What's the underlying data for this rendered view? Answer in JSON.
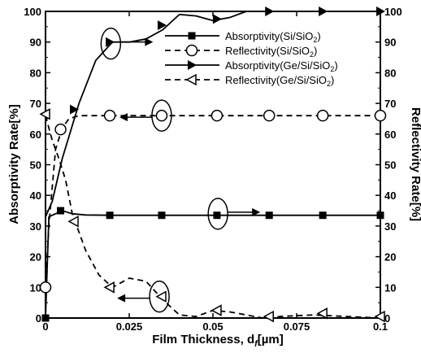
{
  "chart_data": {
    "type": "line",
    "xlabel": "Film Thickness, d",
    "xlabel_sub": "f",
    "xlabel_unit": "[µm]",
    "ylabel_left": "Absorptivity Rate[%]",
    "ylabel_right": "Reflectivity Rate[%]",
    "xlim": [
      0,
      0.1
    ],
    "ylim": [
      0,
      100
    ],
    "x_ticks": [
      0,
      0.025,
      0.05,
      0.075,
      0.1
    ],
    "x_tick_labels": [
      "0",
      "0.025",
      "0.05",
      "0.075",
      "0.1"
    ],
    "y_ticks": [
      0,
      10,
      20,
      30,
      40,
      50,
      60,
      70,
      80,
      90,
      100
    ],
    "y_tick_labels": [
      "0",
      "10",
      "20",
      "30",
      "40",
      "50",
      "60",
      "70",
      "80",
      "90",
      "100"
    ],
    "grid": false,
    "legend_position": "top-right",
    "series": [
      {
        "name": "Absorptivity(Si/SiO2)",
        "label_main": "Absorptivity(Si/SiO",
        "label_sub": "2",
        "label_end": ")",
        "axis": "left",
        "line_style": "solid",
        "marker": "filled-square",
        "x": [
          0,
          0.001,
          0.003,
          0.005,
          0.008,
          0.012,
          0.02,
          0.03,
          0.04,
          0.05,
          0.06,
          0.07,
          0.08,
          0.09,
          0.1
        ],
        "y": [
          0,
          33,
          34,
          35,
          34,
          33.6,
          33.5,
          33.5,
          33.5,
          33.5,
          33.5,
          33.5,
          33.5,
          33.5,
          33.5
        ],
        "marker_x": [
          0,
          0.0045,
          0.0192,
          0.0347,
          0.0512,
          0.0668,
          0.0828,
          0.1
        ],
        "marker_y": [
          0,
          35,
          33.5,
          33.5,
          33.5,
          33.5,
          33.5,
          33.5
        ]
      },
      {
        "name": "Reflectivity(Si/SiO2)",
        "label_main": "Reflectivity(Si/SiO",
        "label_sub": "2",
        "label_end": ")",
        "axis": "right",
        "line_style": "dashed",
        "marker": "open-circle",
        "x": [
          0,
          0.001,
          0.003,
          0.005,
          0.007,
          0.01,
          0.02,
          0.035,
          0.05,
          0.065,
          0.08,
          0.1
        ],
        "y": [
          10,
          30,
          55,
          62,
          65,
          66,
          66,
          66,
          66,
          66,
          66,
          66
        ],
        "marker_x": [
          0,
          0.0045,
          0.0192,
          0.0347,
          0.0512,
          0.0668,
          0.0828,
          0.1
        ],
        "marker_y": [
          10,
          61.5,
          66,
          66,
          66,
          66,
          66,
          66
        ]
      },
      {
        "name": "Absorptivity(Ge/Si/SiO2)",
        "label_main": "Absorptivity(Ge/Si/SiO",
        "label_sub": "2",
        "label_end": ")",
        "axis": "left",
        "line_style": "solid",
        "marker": "filled-triangle-right",
        "x": [
          0,
          0.002,
          0.005,
          0.01,
          0.015,
          0.02,
          0.025,
          0.03,
          0.035,
          0.04,
          0.045,
          0.05,
          0.055,
          0.06,
          0.07,
          0.08,
          0.09,
          0.1
        ],
        "y": [
          33,
          38,
          52,
          70,
          84,
          90,
          90,
          91,
          94,
          99,
          98.5,
          97,
          98,
          100,
          100,
          100,
          100,
          100
        ],
        "marker_x": [
          0.0085,
          0.0192,
          0.0347,
          0.0512,
          0.0668,
          0.0828,
          0.1
        ],
        "marker_y": [
          68,
          90,
          95.5,
          97.5,
          100,
          100,
          100
        ]
      },
      {
        "name": "Reflectivity(Ge/Si/SiO2)",
        "label_main": "Reflectivity(Ge/Si/SiO",
        "label_sub": "2",
        "label_end": ")",
        "axis": "right",
        "line_style": "dashed",
        "marker": "open-triangle-left",
        "x": [
          0,
          0.002,
          0.004,
          0.006,
          0.008,
          0.012,
          0.016,
          0.02,
          0.025,
          0.03,
          0.035,
          0.04,
          0.045,
          0.05,
          0.055,
          0.06,
          0.065,
          0.07,
          0.08,
          0.09,
          0.1
        ],
        "y": [
          66,
          58,
          52,
          45,
          34,
          22,
          14,
          10,
          13,
          12,
          6,
          1,
          0.5,
          2.5,
          2,
          1,
          0,
          0.5,
          1,
          0.5,
          0
        ],
        "marker_x": [
          0,
          0.0085,
          0.0192,
          0.0347,
          0.0512,
          0.0668,
          0.0828,
          0.1
        ],
        "marker_y": [
          66.5,
          31.5,
          10,
          7,
          2.5,
          0.5,
          1.5,
          0.5
        ]
      }
    ],
    "annotations": {
      "ellipses": [
        {
          "series": "Absorptivity(Ge/Si/SiO2)",
          "x": 0.0195,
          "y": 89.5,
          "arrow": "right"
        },
        {
          "series": "Reflectivity(Si/SiO2)",
          "x": 0.0347,
          "y": 66,
          "arrow": "left"
        },
        {
          "series": "Absorptivity(Si/SiO2)",
          "x": 0.0515,
          "y": 34,
          "arrow": "right"
        },
        {
          "series": "Reflectivity(Ge/Si/SiO2)",
          "x": 0.034,
          "y": 7,
          "arrow": "left"
        }
      ]
    }
  }
}
